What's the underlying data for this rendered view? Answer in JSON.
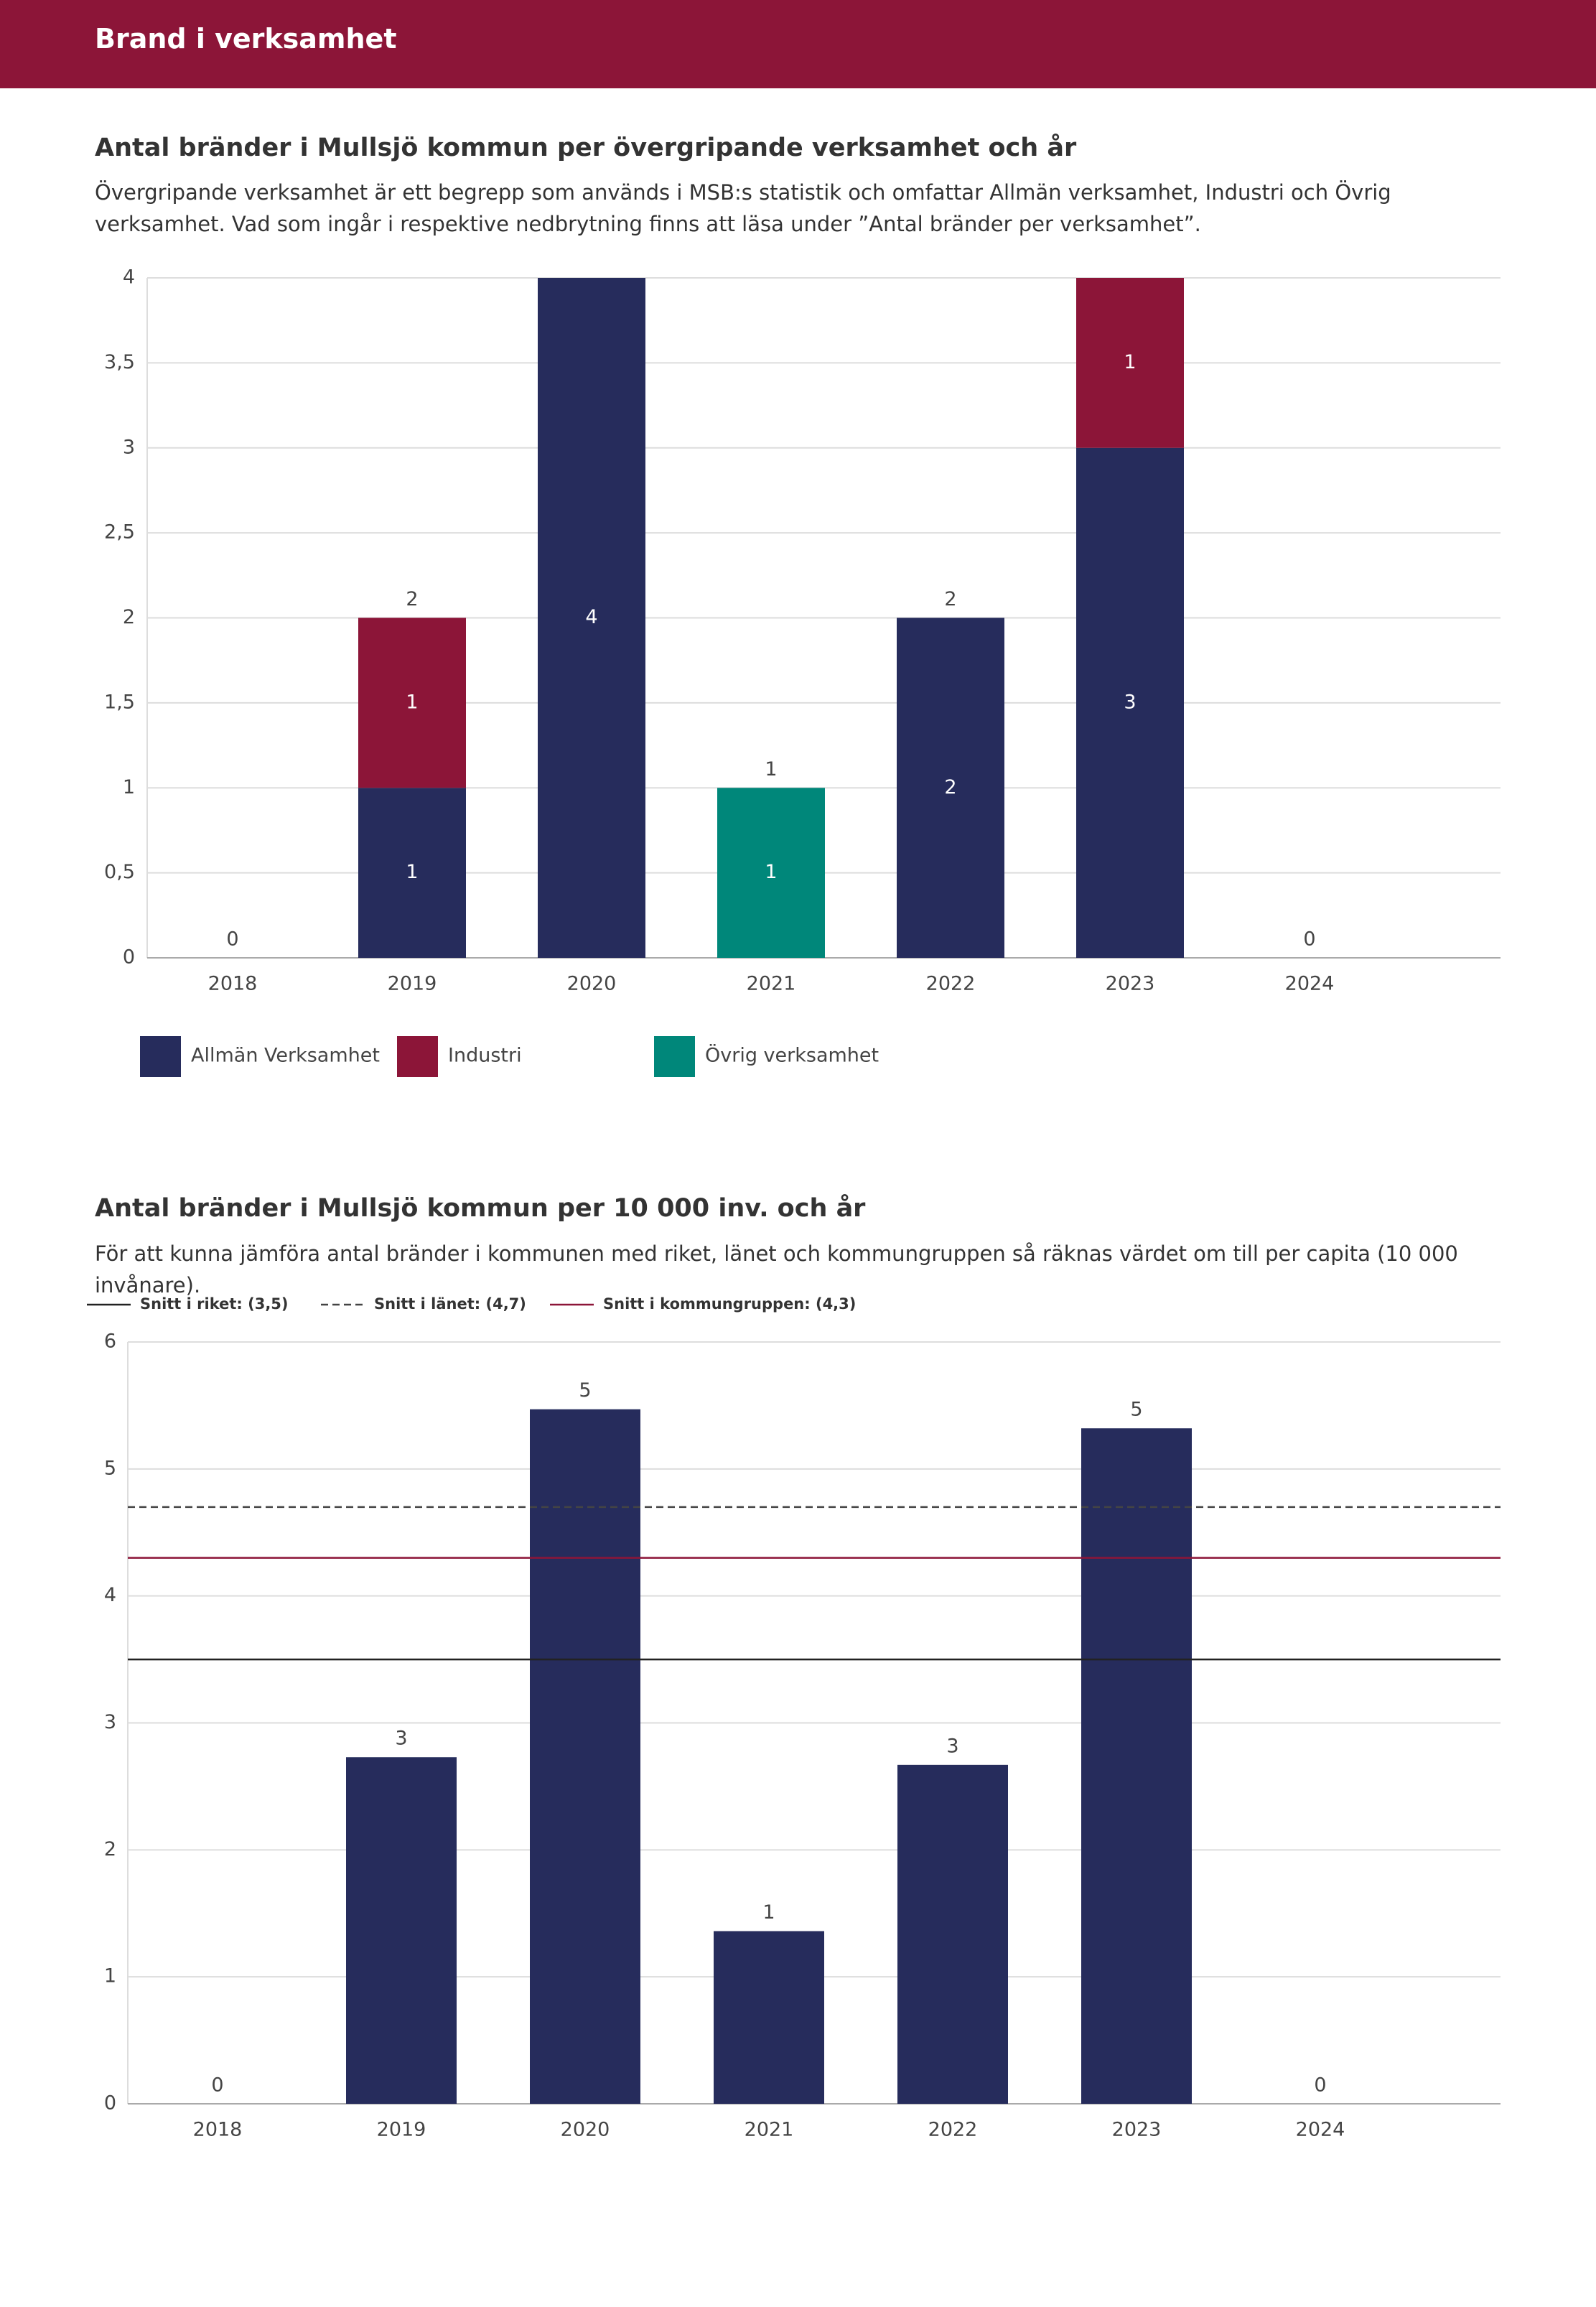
{
  "header": {
    "title": "Brand i verksamhet"
  },
  "chart_data": [
    {
      "type": "stacked_bar",
      "title": "Antal bränder i Mullsjö kommun per övergripande verksamhet och år",
      "subtitle": "Övergripande verksamhet är ett begrepp som används i MSB:s statistik och omfattar Allmän verksamhet, Industri och Övrig verksamhet. Vad som ingår i respektive nedbrytning finns att läsa under ”Antal bränder per verksamhet”.",
      "categories": [
        "2018",
        "2019",
        "2020",
        "2021",
        "2022",
        "2023",
        "2024"
      ],
      "series": [
        {
          "name": "Allmän Verksamhet",
          "color": "#262c5c",
          "values": [
            0,
            1,
            4,
            0,
            2,
            3,
            0
          ]
        },
        {
          "name": "Industri",
          "color": "#8c1538",
          "values": [
            0,
            1,
            0,
            0,
            0,
            1,
            0
          ]
        },
        {
          "name": "Övrig verksamhet",
          "color": "#00877a",
          "values": [
            0,
            0,
            0,
            1,
            0,
            0,
            0
          ]
        }
      ],
      "totals": [
        0,
        2,
        null,
        1,
        2,
        null,
        0
      ],
      "ylim": [
        0,
        4
      ],
      "yticks": [
        0,
        {
          "value": 0.5,
          "label": "0,5"
        },
        1,
        {
          "value": 1.5,
          "label": "1,5"
        },
        2,
        {
          "value": 2.5,
          "label": "2,5"
        },
        3,
        {
          "value": 3.5,
          "label": "3,5"
        },
        4
      ],
      "grid": true
    },
    {
      "type": "bar",
      "title": "Antal bränder i Mullsjö kommun per 10 000 inv. och år",
      "subtitle": "För att kunna jämföra antal bränder i kommunen med riket, länet och kommungruppen så räknas värdet om till per capita (10 000 invånare).",
      "categories": [
        "2018",
        "2019",
        "2020",
        "2021",
        "2022",
        "2023",
        "2024"
      ],
      "values": [
        0,
        2.73,
        5.47,
        1.36,
        2.67,
        5.32,
        0
      ],
      "value_labels": [
        "0",
        "3",
        "5",
        "1",
        "3",
        "5",
        "0"
      ],
      "color": "#262c5c",
      "reference_lines": [
        {
          "name": "Snitt i riket: (3,5)",
          "value": 3.5,
          "color": "#222222",
          "dashed": false
        },
        {
          "name": "Snitt i länet: (4,7)",
          "value": 4.7,
          "color": "#444444",
          "dashed": true
        },
        {
          "name": "Snitt i kommungruppen: (4,3)",
          "value": 4.3,
          "color": "#8c1538",
          "dashed": false
        }
      ],
      "ylim": [
        0,
        6
      ],
      "yticks": [
        0,
        1,
        2,
        3,
        4,
        5,
        6
      ],
      "grid": true
    }
  ]
}
